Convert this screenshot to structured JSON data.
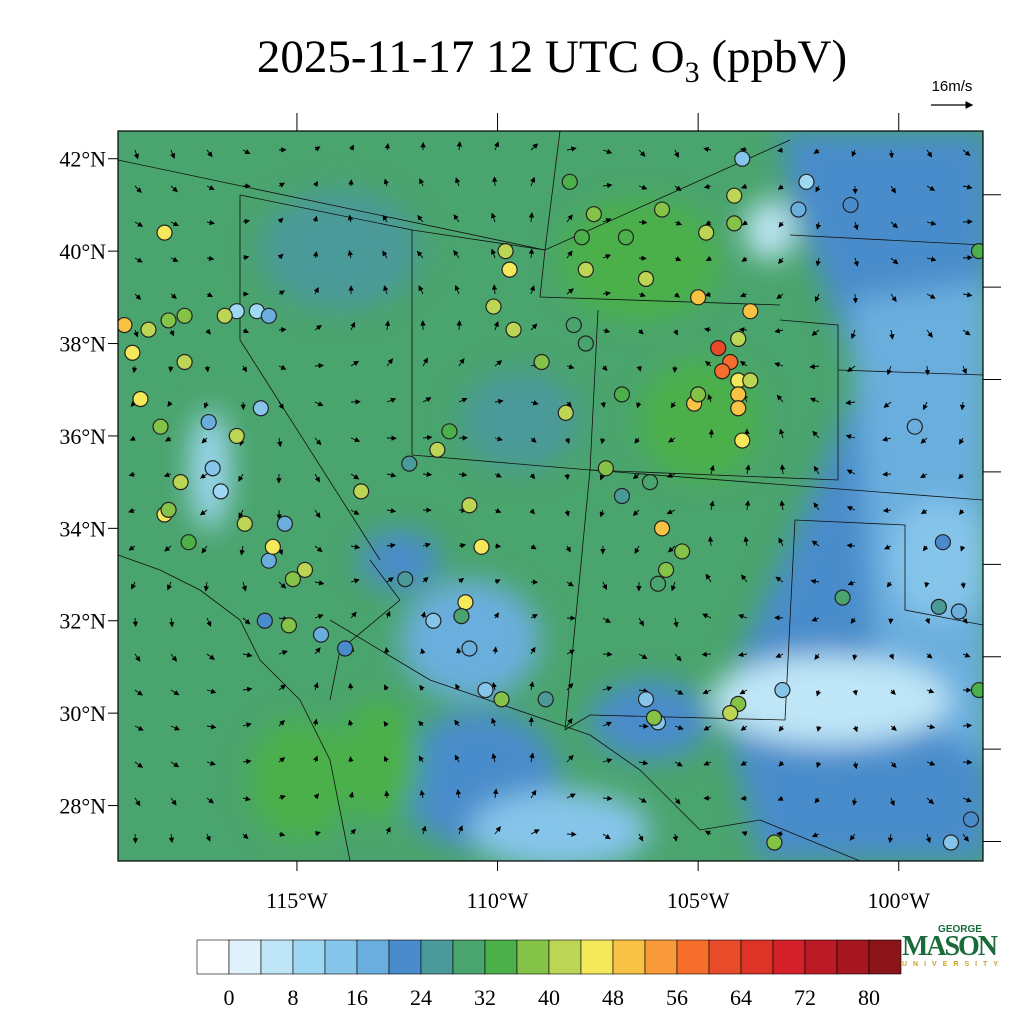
{
  "title_main": "2025-11-17 12 UTC O",
  "title_sub": "3",
  "title_tail": " (ppbV)",
  "vector_ref": "16m/s",
  "map": {
    "xlim": [
      -119.46,
      -97.9
    ],
    "ylim": [
      26.8,
      42.6
    ],
    "lon_ticks": [
      {
        "value": -115,
        "label": "115°W"
      },
      {
        "value": -110,
        "label": "110°W"
      },
      {
        "value": -105,
        "label": "105°W"
      },
      {
        "value": -100,
        "label": "100°W"
      }
    ],
    "lat_ticks": [
      {
        "value": 42,
        "label": "42°N"
      },
      {
        "value": 40,
        "label": "40°N"
      },
      {
        "value": 38,
        "label": "38°N"
      },
      {
        "value": 36,
        "label": "36°N"
      },
      {
        "value": 34,
        "label": "34°N"
      },
      {
        "value": 32,
        "label": "32°N"
      },
      {
        "value": 30,
        "label": "30°N"
      },
      {
        "value": 28,
        "label": "28°N"
      }
    ],
    "stations": [
      [
        -103.9,
        42.0,
        12
      ],
      [
        -102.3,
        41.5,
        10
      ],
      [
        -101.2,
        41.0,
        20
      ],
      [
        -102.5,
        40.9,
        18
      ],
      [
        -108.2,
        41.5,
        32
      ],
      [
        -104.1,
        41.2,
        40
      ],
      [
        -104.1,
        40.6,
        36
      ],
      [
        -105.9,
        40.9,
        36
      ],
      [
        -107.9,
        40.3,
        34
      ],
      [
        -107.6,
        40.8,
        36
      ],
      [
        -106.8,
        40.3,
        34
      ],
      [
        -107.8,
        39.6,
        42
      ],
      [
        -106.3,
        39.4,
        40
      ],
      [
        -104.8,
        40.4,
        40
      ],
      [
        -105.0,
        39.0,
        48
      ],
      [
        -103.7,
        38.7,
        48
      ],
      [
        -104.0,
        38.1,
        40
      ],
      [
        -104.5,
        37.9,
        60
      ],
      [
        -104.2,
        37.6,
        58
      ],
      [
        -104.4,
        37.4,
        56
      ],
      [
        -104.0,
        37.2,
        44
      ],
      [
        -103.7,
        37.2,
        40
      ],
      [
        -104.0,
        36.9,
        48
      ],
      [
        -104.0,
        36.6,
        48
      ],
      [
        -103.9,
        35.9,
        44
      ],
      [
        -105.1,
        36.7,
        48
      ],
      [
        -105.0,
        36.9,
        36
      ],
      [
        -106.9,
        36.9,
        34
      ],
      [
        -109.8,
        40.0,
        40
      ],
      [
        -109.7,
        39.6,
        44
      ],
      [
        -110.1,
        38.8,
        42
      ],
      [
        -109.6,
        38.3,
        40
      ],
      [
        -108.9,
        37.6,
        38
      ],
      [
        -108.1,
        38.4,
        30
      ],
      [
        -107.8,
        38.0,
        30
      ],
      [
        -108.3,
        36.5,
        40
      ],
      [
        -112.2,
        35.4,
        26
      ],
      [
        -111.5,
        35.7,
        40
      ],
      [
        -111.2,
        36.1,
        34
      ],
      [
        -113.4,
        34.8,
        42
      ],
      [
        -110.7,
        34.5,
        42
      ],
      [
        -110.4,
        33.6,
        44
      ],
      [
        -112.3,
        32.9,
        24
      ],
      [
        -107.3,
        35.3,
        36
      ],
      [
        -106.9,
        34.7,
        24
      ],
      [
        -106.2,
        35.0,
        30
      ],
      [
        -105.9,
        34.0,
        48
      ],
      [
        -105.4,
        33.5,
        36
      ],
      [
        -105.8,
        33.1,
        38
      ],
      [
        -106.0,
        32.8,
        30
      ],
      [
        -109.9,
        30.3,
        36
      ],
      [
        -110.3,
        30.5,
        14
      ],
      [
        -110.7,
        31.4,
        18
      ],
      [
        -110.8,
        32.4,
        44
      ],
      [
        -110.9,
        32.1,
        30
      ],
      [
        -111.6,
        32.0,
        14
      ],
      [
        -108.8,
        30.3,
        24
      ],
      [
        -106.3,
        30.3,
        14
      ],
      [
        -106.0,
        29.8,
        14
      ],
      [
        -106.1,
        29.9,
        36
      ],
      [
        -104.0,
        30.2,
        36
      ],
      [
        -104.2,
        30.0,
        40
      ],
      [
        -102.9,
        30.5,
        12
      ],
      [
        -99.6,
        36.2,
        18
      ],
      [
        -98.9,
        33.7,
        22
      ],
      [
        -99.0,
        32.3,
        24
      ],
      [
        -98.5,
        32.2,
        18
      ],
      [
        -98.0,
        40.0,
        34
      ],
      [
        -98.0,
        30.5,
        34
      ],
      [
        -98.2,
        27.7,
        20
      ],
      [
        -98.7,
        27.2,
        12
      ],
      [
        -103.1,
        27.2,
        38
      ],
      [
        -101.4,
        32.5,
        30
      ],
      [
        -119.3,
        38.4,
        48
      ],
      [
        -119.1,
        37.8,
        46
      ],
      [
        -118.9,
        36.8,
        44
      ],
      [
        -118.4,
        36.2,
        38
      ],
      [
        -118.3,
        34.3,
        44
      ],
      [
        -117.8,
        37.6,
        40
      ],
      [
        -118.3,
        40.4,
        44
      ],
      [
        -117.2,
        36.3,
        16
      ],
      [
        -117.1,
        35.3,
        12
      ],
      [
        -116.9,
        34.8,
        10
      ],
      [
        -116.5,
        36.0,
        40
      ],
      [
        -115.9,
        36.6,
        12
      ],
      [
        -116.0,
        38.7,
        10
      ],
      [
        -115.7,
        38.6,
        16
      ],
      [
        -116.5,
        38.7,
        10
      ],
      [
        -116.8,
        38.6,
        42
      ],
      [
        -115.3,
        34.1,
        16
      ],
      [
        -116.3,
        34.1,
        40
      ],
      [
        -115.7,
        33.3,
        16
      ],
      [
        -115.1,
        32.9,
        36
      ],
      [
        -114.8,
        33.1,
        40
      ],
      [
        -115.6,
        33.6,
        44
      ],
      [
        -115.8,
        32.0,
        20
      ],
      [
        -115.2,
        31.9,
        36
      ],
      [
        -114.4,
        31.7,
        16
      ],
      [
        -113.8,
        31.4,
        22
      ],
      [
        -117.9,
        35.0,
        40
      ],
      [
        -118.2,
        34.4,
        36
      ],
      [
        -117.7,
        33.7,
        34
      ],
      [
        -118.7,
        38.3,
        40
      ],
      [
        -118.2,
        38.5,
        38
      ],
      [
        -117.8,
        38.6,
        36
      ]
    ]
  },
  "colorbar": {
    "levels": [
      0,
      4,
      8,
      12,
      16,
      20,
      24,
      28,
      32,
      36,
      40,
      44,
      48,
      52,
      56,
      60,
      64,
      68,
      72,
      76,
      80
    ],
    "colors": [
      "#ffffff",
      "#dff2fb",
      "#bfe6f7",
      "#9fd8f3",
      "#86c5ea",
      "#6aaede",
      "#4a8ccb",
      "#4b9a9a",
      "#4aa46d",
      "#4cb04a",
      "#84c347",
      "#bcd554",
      "#f5e85a",
      "#f8c244",
      "#f99a3a",
      "#f76e2c",
      "#e84b2a",
      "#dd3427",
      "#d42029",
      "#bc1a26",
      "#a5161f",
      "#8b1418"
    ],
    "ticks": [
      0,
      8,
      16,
      24,
      32,
      40,
      48,
      56,
      64,
      72,
      80
    ]
  },
  "logo": {
    "top": "GEORGE",
    "main": "MASON",
    "bottom": "UNIVERSITY"
  }
}
